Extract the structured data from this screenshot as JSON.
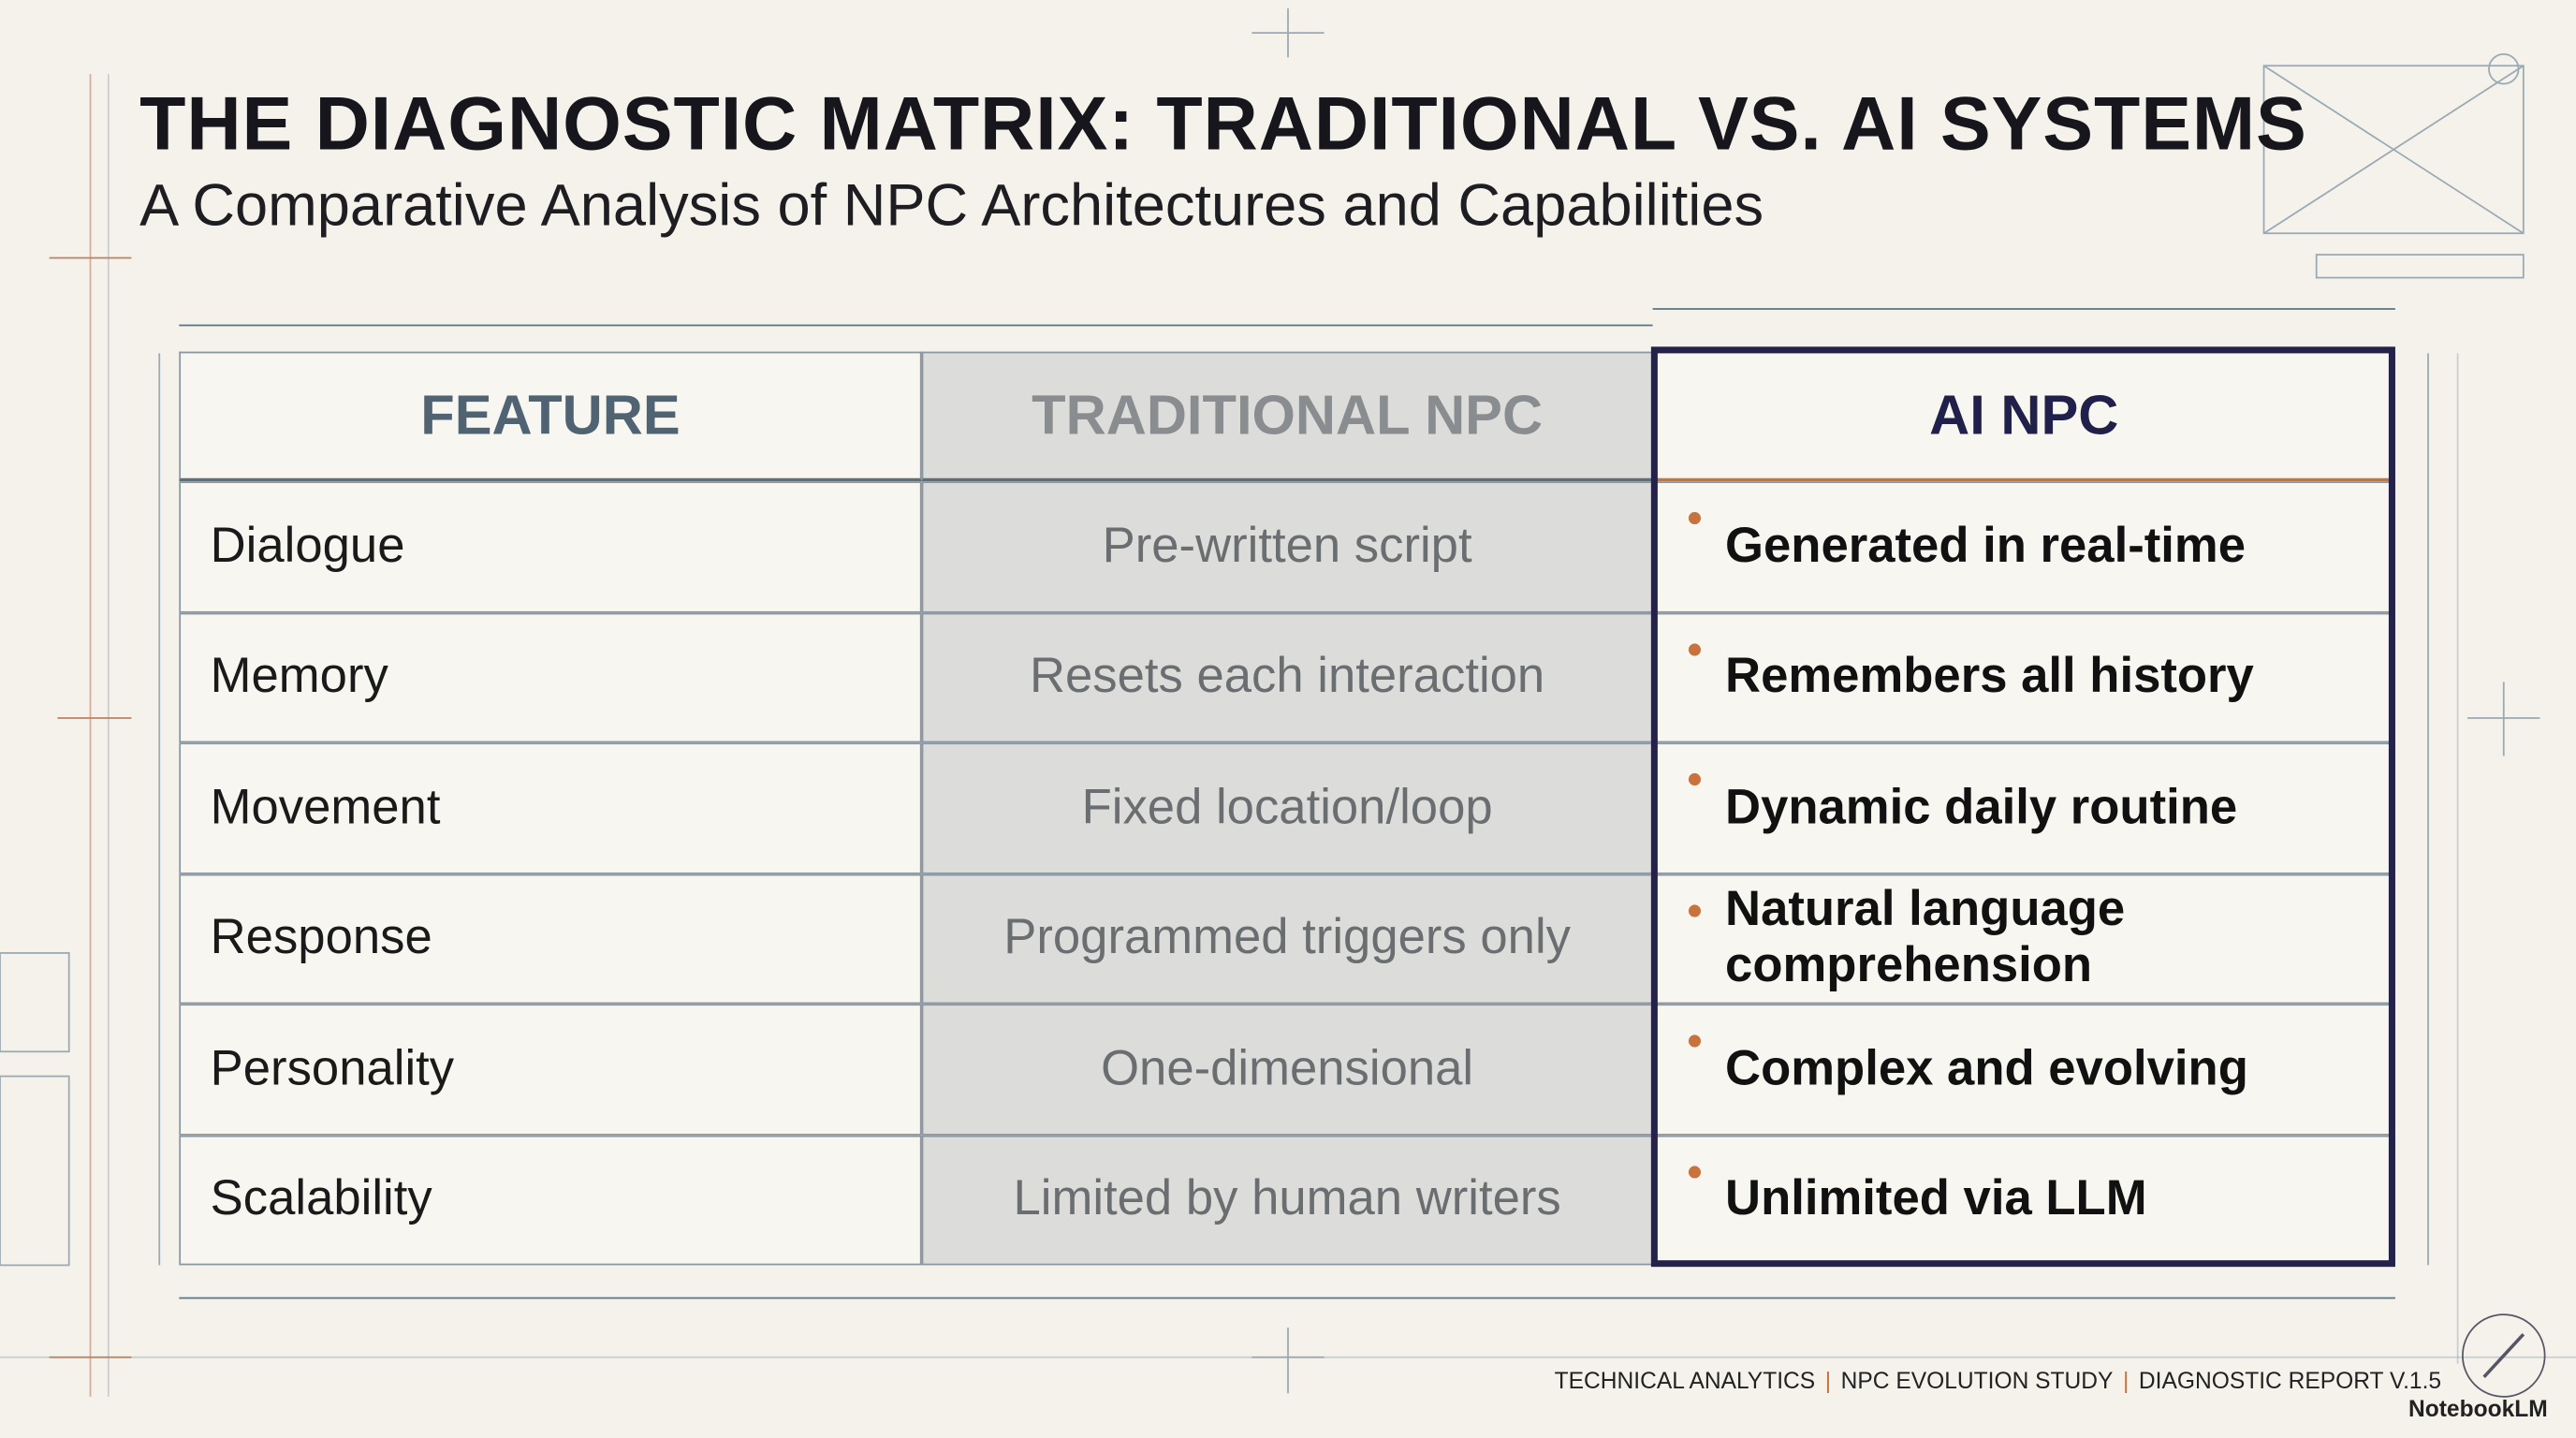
{
  "header": {
    "title": "THE DIAGNOSTIC MATRIX: TRADITIONAL VS. AI SYSTEMS",
    "subtitle": "A Comparative Analysis of NPC Architectures and Capabilities"
  },
  "table": {
    "columns": [
      "FEATURE",
      "TRADITIONAL NPC",
      "AI NPC"
    ],
    "rows": [
      [
        "Dialogue",
        "Pre-written script",
        "Generated in real-time"
      ],
      [
        "Memory",
        "Resets each interaction",
        "Remembers all history"
      ],
      [
        "Movement",
        "Fixed location/loop",
        "Dynamic daily routine"
      ],
      [
        "Response",
        "Programmed triggers only",
        "Natural language comprehension"
      ],
      [
        "Personality",
        "One-dimensional",
        "Complex and evolving"
      ],
      [
        "Scalability",
        "Limited by human writers",
        "Unlimited via LLM"
      ]
    ]
  },
  "footer": {
    "items": [
      "TECHNICAL ANALYTICS",
      "NPC EVOLUTION STUDY",
      "DIAGNOSTIC REPORT V.1.5"
    ],
    "brand": "NotebookLM"
  }
}
